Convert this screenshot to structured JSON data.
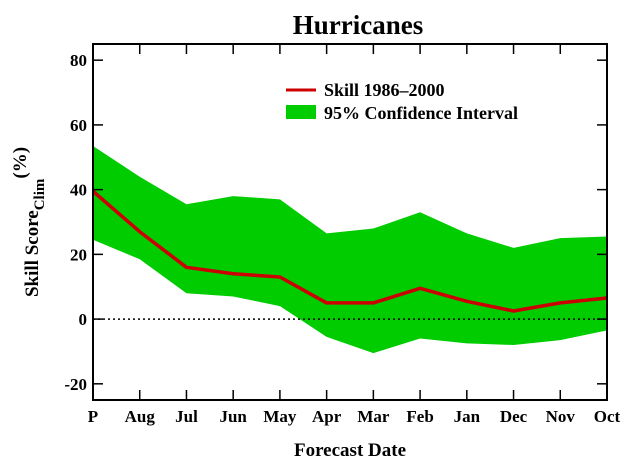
{
  "chart_data": {
    "type": "line",
    "title": "Hurricanes",
    "xlabel": "Forecast Date",
    "ylabel_main": "Skill Score",
    "ylabel_sub": "Clim",
    "ylabel_unit": "(%)",
    "categories": [
      "P",
      "Aug",
      "Jul",
      "Jun",
      "May",
      "Apr",
      "Mar",
      "Feb",
      "Jan",
      "Dec",
      "Nov",
      "Oct"
    ],
    "ylim": [
      -25,
      85
    ],
    "yticks": [
      -20,
      0,
      20,
      40,
      60,
      80
    ],
    "series": [
      {
        "name": "Skill 1986–2000",
        "values": [
          39.5,
          27,
          16,
          14,
          13,
          5,
          5,
          9.5,
          5.5,
          2.5,
          5,
          6.5
        ],
        "color": "#cc0000"
      }
    ],
    "confidence_interval": {
      "name": "95% Confidence Interval",
      "upper": [
        53.5,
        44,
        35.5,
        38,
        37,
        26.5,
        28,
        33,
        26.5,
        22,
        25,
        25.5
      ],
      "lower": [
        24.5,
        18.5,
        8,
        7,
        4,
        -5.5,
        -10.5,
        -6,
        -7.5,
        -8,
        -6.5,
        -3.5
      ],
      "color": "#00cc00"
    },
    "zero_line": "dotted",
    "grid": false,
    "legend_position": "top-right"
  }
}
